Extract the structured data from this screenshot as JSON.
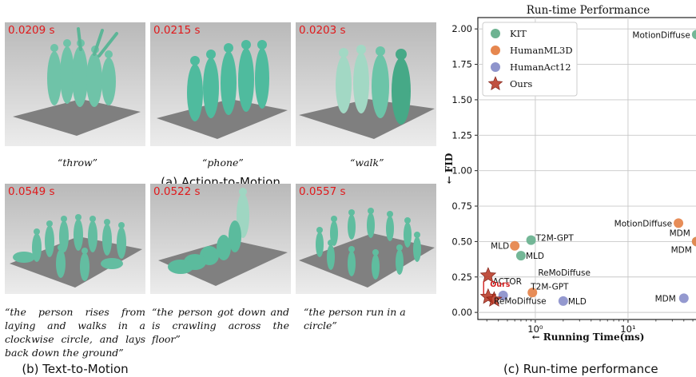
{
  "figure": {
    "action_panels": [
      {
        "time": "0.0209 s",
        "caption": "“throw”"
      },
      {
        "time": "0.0215 s",
        "caption": "“phone”"
      },
      {
        "time": "0.0203 s",
        "caption": "“walk”"
      }
    ],
    "action_label": "(a) Action-to-Motion",
    "text_panels": [
      {
        "time": "0.0549 s",
        "caption": "“the person rises from laying and walks in a clockwise circle, and lays back down the ground”"
      },
      {
        "time": "0.0522 s",
        "caption": "“the person got down and is crawling across the floor”"
      },
      {
        "time": "0.0557 s",
        "caption": "“the person run in a circle”"
      }
    ],
    "text_label": "(b) Text-to-Motion",
    "chart_label": "(c) Run-time performance"
  },
  "chart_data": {
    "type": "scatter",
    "title": "Run-time Performance",
    "xlabel": "← Running Time(ms)",
    "ylabel": "← FID",
    "x_scale": "log",
    "x_tick_labels": [
      "10⁰",
      "10¹"
    ],
    "x_tick_values": [
      1,
      10
    ],
    "ylim": [
      -0.05,
      2.08
    ],
    "y_ticks": [
      "0.00",
      "0.25",
      "0.50",
      "0.75",
      "1.00",
      "1.25",
      "1.50",
      "1.75",
      "2.00"
    ],
    "grid": true,
    "legend_position": "top-left",
    "series": [
      {
        "name": "KIT",
        "color": "#6db391",
        "marker": "circle",
        "points": [
          {
            "x": 0.9,
            "y": 0.51,
            "label": "T2M-GPT"
          },
          {
            "x": 0.7,
            "y": 0.4,
            "label": "MLD"
          },
          {
            "x": 55,
            "y": 1.96,
            "label": "MotionDiffuse"
          },
          {
            "x": 55,
            "y": 0.5,
            "label": "MDM"
          }
        ]
      },
      {
        "name": "HumanML3D",
        "color": "#e6874f",
        "marker": "circle",
        "points": [
          {
            "x": 0.6,
            "y": 0.47,
            "label": "MLD"
          },
          {
            "x": 0.93,
            "y": 0.14,
            "label": "T2M-GPT"
          },
          {
            "x": 35,
            "y": 0.63,
            "label": "MotionDiffuse"
          },
          {
            "x": 55,
            "y": 0.5,
            "label": "MDM"
          }
        ]
      },
      {
        "name": "HumanAct12",
        "color": "#8e94cc",
        "marker": "circle",
        "points": [
          {
            "x": 0.45,
            "y": 0.12,
            "label": "ACTOR"
          },
          {
            "x": 2.0,
            "y": 0.08,
            "label": "MLD"
          },
          {
            "x": 40,
            "y": 0.1,
            "label": "MDM"
          }
        ]
      },
      {
        "name": "Ours",
        "color": "#b5331f",
        "marker": "star",
        "points": [
          {
            "x": 0.31,
            "y": 0.26,
            "label": ""
          },
          {
            "x": 0.31,
            "y": 0.11,
            "label": ""
          },
          {
            "x": 0.36,
            "y": 0.09,
            "label": ""
          }
        ]
      }
    ],
    "annotations": [
      {
        "text": "ReMoDiffuse",
        "x": 0.95,
        "y": 0.25
      },
      {
        "text": "ReMoDiffuse",
        "x": 0.33,
        "y": 0.06
      },
      {
        "text": "Ours",
        "x": 0.3,
        "y": 0.18
      }
    ]
  }
}
